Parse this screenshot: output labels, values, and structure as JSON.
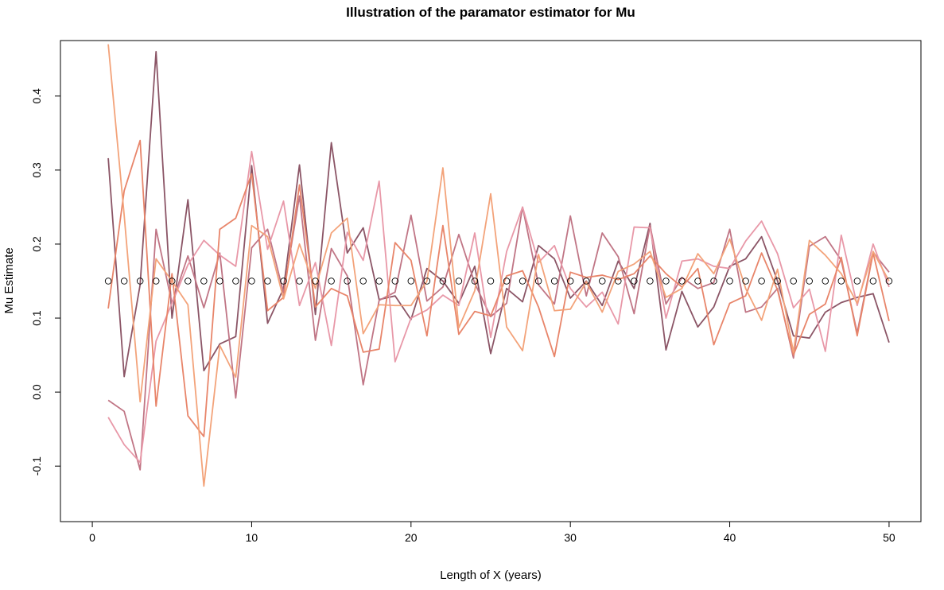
{
  "chart_data": {
    "type": "line",
    "title": "Illustration of the paramator estimator for Mu",
    "xlabel": "Length of X (years)",
    "ylabel": "Mu Estimate",
    "xlim": [
      -2,
      52
    ],
    "ylim": [
      -0.175,
      0.475
    ],
    "xticks": [
      0,
      10,
      20,
      30,
      40,
      50
    ],
    "xtick_labels": [
      "0",
      "10",
      "20",
      "30",
      "40",
      "50"
    ],
    "yticks": [
      -0.1,
      0.0,
      0.1,
      0.2,
      0.3,
      0.4
    ],
    "ytick_labels": [
      "-0.1",
      "0.0",
      "0.1",
      "0.2",
      "0.3",
      "0.4"
    ],
    "grid": false,
    "legend": "none",
    "reference_points": {
      "marker": "open-circle",
      "y": 0.15,
      "x": [
        1,
        2,
        3,
        4,
        5,
        6,
        7,
        8,
        9,
        10,
        11,
        12,
        13,
        14,
        15,
        16,
        17,
        18,
        19,
        20,
        21,
        22,
        23,
        24,
        25,
        26,
        27,
        28,
        29,
        30,
        31,
        32,
        33,
        34,
        35,
        36,
        37,
        38,
        39,
        40,
        41,
        42,
        43,
        44,
        45,
        46,
        47,
        48,
        49,
        50
      ]
    },
    "x": [
      1,
      2,
      3,
      4,
      5,
      6,
      7,
      8,
      9,
      10,
      11,
      12,
      13,
      14,
      15,
      16,
      17,
      18,
      19,
      20,
      21,
      22,
      23,
      24,
      25,
      26,
      27,
      28,
      29,
      30,
      31,
      32,
      33,
      34,
      35,
      36,
      37,
      38,
      39,
      40,
      41,
      42,
      43,
      44,
      45,
      46,
      47,
      48,
      49,
      50
    ],
    "series": [
      {
        "color": "#8b5566",
        "values": [
          0.316,
          0.021,
          0.145,
          0.46,
          0.1,
          0.26,
          0.029,
          0.065,
          0.075,
          0.306,
          0.093,
          0.14,
          0.307,
          0.105,
          0.337,
          0.188,
          0.222,
          0.125,
          0.13,
          0.098,
          0.167,
          0.15,
          0.12,
          0.17,
          0.052,
          0.14,
          0.122,
          0.198,
          0.18,
          0.127,
          0.15,
          0.117,
          0.177,
          0.14,
          0.228,
          0.057,
          0.136,
          0.088,
          0.115,
          0.17,
          0.18,
          0.21,
          0.15,
          0.076,
          0.073,
          0.108,
          0.121,
          0.128,
          0.133,
          0.067
        ]
      },
      {
        "color": "#c07585",
        "values": [
          -0.011,
          -0.026,
          -0.105,
          0.22,
          0.12,
          0.184,
          0.114,
          0.188,
          -0.008,
          0.195,
          0.22,
          0.134,
          0.265,
          0.07,
          0.194,
          0.157,
          0.01,
          0.124,
          0.135,
          0.239,
          0.123,
          0.142,
          0.213,
          0.147,
          0.102,
          0.12,
          0.25,
          0.145,
          0.119,
          0.238,
          0.13,
          0.215,
          0.183,
          0.106,
          0.225,
          0.119,
          0.155,
          0.14,
          0.148,
          0.22,
          0.108,
          0.115,
          0.14,
          0.046,
          0.197,
          0.21,
          0.178,
          0.08,
          0.189,
          0.162
        ]
      },
      {
        "color": "#e898a8",
        "values": [
          -0.034,
          -0.071,
          -0.095,
          0.069,
          0.12,
          0.172,
          0.205,
          0.185,
          0.17,
          0.325,
          0.193,
          0.258,
          0.117,
          0.175,
          0.063,
          0.216,
          0.178,
          0.285,
          0.041,
          0.1,
          0.111,
          0.131,
          0.117,
          0.215,
          0.074,
          0.19,
          0.25,
          0.175,
          0.198,
          0.14,
          0.115,
          0.135,
          0.092,
          0.223,
          0.222,
          0.1,
          0.177,
          0.18,
          0.17,
          0.167,
          0.204,
          0.231,
          0.187,
          0.114,
          0.139,
          0.055,
          0.212,
          0.117,
          0.2,
          0.142
        ]
      },
      {
        "color": "#e8856a",
        "values": [
          0.113,
          0.272,
          0.34,
          -0.019,
          0.16,
          -0.032,
          -0.06,
          0.22,
          0.235,
          0.295,
          0.11,
          0.128,
          0.28,
          0.115,
          0.14,
          0.13,
          0.054,
          0.058,
          0.202,
          0.178,
          0.076,
          0.225,
          0.078,
          0.109,
          0.103,
          0.157,
          0.164,
          0.115,
          0.048,
          0.162,
          0.155,
          0.158,
          0.152,
          0.16,
          0.184,
          0.16,
          0.142,
          0.167,
          0.064,
          0.12,
          0.13,
          0.188,
          0.138,
          0.05,
          0.105,
          0.119,
          0.182,
          0.076,
          0.188,
          0.096
        ]
      },
      {
        "color": "#f3a37a",
        "values": [
          0.47,
          0.239,
          -0.013,
          0.18,
          0.15,
          0.118,
          -0.127,
          0.063,
          0.02,
          0.225,
          0.21,
          0.126,
          0.2,
          0.14,
          0.215,
          0.235,
          0.079,
          0.118,
          0.117,
          0.117,
          0.15,
          0.303,
          0.087,
          0.137,
          0.268,
          0.088,
          0.056,
          0.186,
          0.11,
          0.112,
          0.149,
          0.108,
          0.163,
          0.173,
          0.19,
          0.128,
          0.14,
          0.187,
          0.16,
          0.207,
          0.14,
          0.097,
          0.166,
          0.054,
          0.205,
          0.185,
          0.16,
          0.12,
          0.19,
          0.15
        ]
      }
    ]
  }
}
